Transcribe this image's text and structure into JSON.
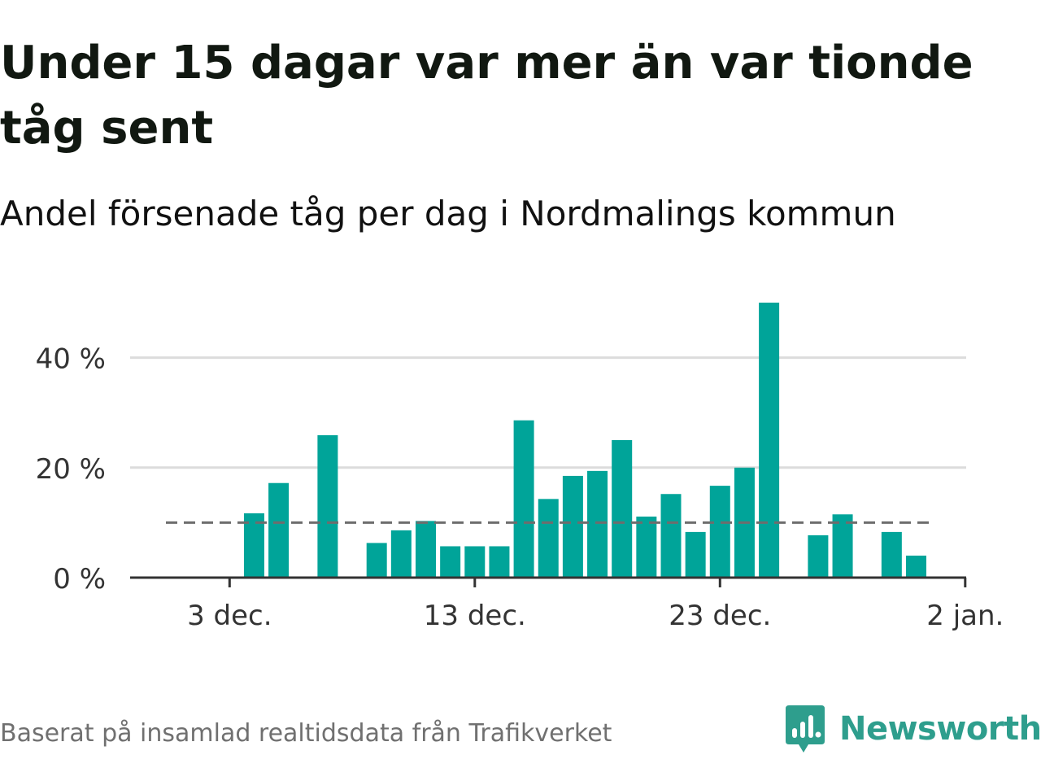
{
  "header": {
    "title": "Under 15 dagar var mer än var tionde tåg sent",
    "subtitle": "Andel försenade tåg per dag i Nordmalings kommun"
  },
  "footer": {
    "source": "Baserat på insamlad realtidsdata från Trafikverket",
    "brand": "Newsworthy",
    "brand_icon": "newsworthy-logo-icon"
  },
  "colors": {
    "bar": "#00a499",
    "grid": "#dcdcdc",
    "axis": "#333333",
    "reference_line": "#6d6d6d",
    "brand": "#2e9e8d"
  },
  "chart_data": {
    "type": "bar",
    "x": [
      "1 dec.",
      "2 dec.",
      "3 dec.",
      "4 dec.",
      "5 dec.",
      "6 dec.",
      "7 dec.",
      "8 dec.",
      "9 dec.",
      "10 dec.",
      "11 dec.",
      "12 dec.",
      "13 dec.",
      "14 dec.",
      "15 dec.",
      "16 dec.",
      "17 dec.",
      "18 dec.",
      "19 dec.",
      "20 dec.",
      "21 dec.",
      "22 dec.",
      "23 dec.",
      "24 dec.",
      "25 dec.",
      "26 dec.",
      "27 dec.",
      "28 dec.",
      "29 dec.",
      "30 dec.",
      "31 dec.",
      "1 jan.",
      "2 jan."
    ],
    "values": [
      null,
      null,
      null,
      11.7,
      17.2,
      null,
      25.9,
      null,
      6.3,
      8.6,
      10.3,
      5.7,
      5.7,
      5.7,
      28.6,
      14.3,
      18.5,
      19.4,
      25.0,
      11.1,
      15.2,
      8.3,
      16.7,
      20.0,
      50.0,
      null,
      7.7,
      11.5,
      null,
      8.3,
      4.0,
      null,
      null
    ],
    "x_ticks": [
      "3 dec.",
      "13 dec.",
      "23 dec.",
      "2 jan."
    ],
    "y_ticks": [
      "0 %",
      "20 %",
      "40 %"
    ],
    "y_tick_values": [
      0,
      20,
      40
    ],
    "ylim": [
      0,
      50
    ],
    "reference_line": {
      "value": 10,
      "style": "dashed"
    },
    "grid": true,
    "title": "Under 15 dagar var mer än var tionde tåg sent",
    "subtitle": "Andel försenade tåg per dag i Nordmalings kommun",
    "xlabel": "",
    "ylabel": ""
  }
}
